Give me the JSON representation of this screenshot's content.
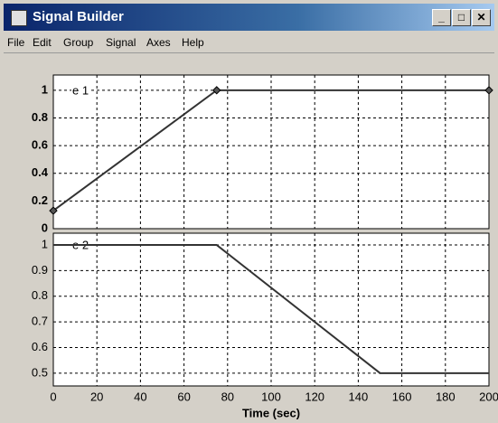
{
  "window": {
    "title": "Signal Builder",
    "menu": [
      "File",
      "Edit",
      "Group",
      "Signal",
      "Axes",
      "Help"
    ]
  },
  "chart_data": [
    {
      "type": "line",
      "x": [
        0,
        75,
        200
      ],
      "series": [
        {
          "name": "e 1",
          "color": "#333333",
          "values": [
            0.13,
            1,
            1
          ]
        }
      ],
      "xlim": [
        0,
        200
      ],
      "xticks": [
        0,
        20,
        40,
        60,
        80,
        100,
        120,
        140,
        160,
        180,
        200
      ],
      "show_xtick_labels": false,
      "ylim": [
        0,
        1.11
      ],
      "yticks": [
        0,
        0.2,
        0.4,
        0.6,
        0.8,
        1
      ],
      "grid": true,
      "markers": true
    },
    {
      "type": "line",
      "x": [
        0,
        75,
        150,
        200
      ],
      "series": [
        {
          "name": "e 2",
          "color": "#333333",
          "values": [
            1,
            1,
            0.5,
            0.5
          ]
        }
      ],
      "xlim": [
        0,
        200
      ],
      "xticks": [
        0,
        20,
        40,
        60,
        80,
        100,
        120,
        140,
        160,
        180,
        200
      ],
      "show_xtick_labels": true,
      "xlabel": "Time (sec)",
      "ylim": [
        0.45,
        1.046
      ],
      "yticks": [
        0.5,
        0.6,
        0.7,
        0.8,
        0.9,
        1
      ],
      "grid": true,
      "markers": false
    }
  ]
}
